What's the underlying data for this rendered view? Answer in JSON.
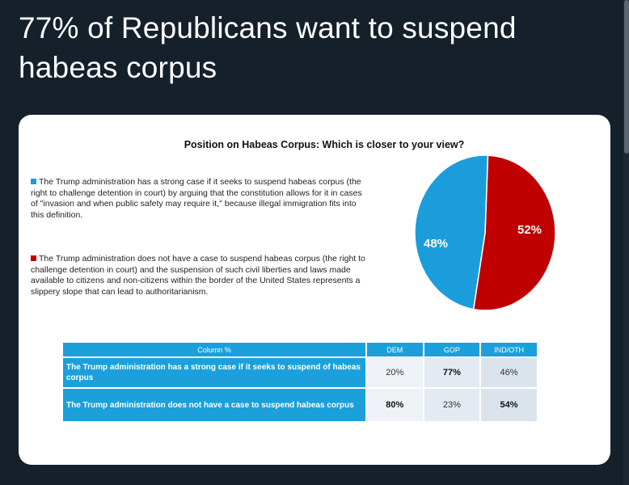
{
  "post": {
    "title": "77% of Republicans want to suspend habeas corpus"
  },
  "chart": {
    "title": "Position on Habeas Corpus: Which is closer to your view?",
    "option_a": "The Trump administration has a strong case if it seeks to suspend habeas corpus (the right to challenge detention in court) by arguing that the constitution allows for it in cases of \"invasion and when public safety may require it,\" because illegal immigration fits into this definition.",
    "option_b": "The Trump administration does not have a case to suspend habeas corpus (the right to challenge detention in court) and the suspension of such civil liberties and laws made available to citizens and non-citizens within the border of the United States represents a slippery slope that can lead to authoritarianism."
  },
  "colors": {
    "blue": "#1b9ddb",
    "red": "#c00000",
    "table_header": "#1ba0dc"
  },
  "chart_data": {
    "type": "pie",
    "slices": [
      {
        "label": "48%",
        "value": 48,
        "color": "#1b9ddb"
      },
      {
        "label": "52%",
        "value": 52,
        "color": "#c00000"
      }
    ]
  },
  "table": {
    "header": {
      "column": "Column %",
      "dem": "DEM",
      "gop": "GOP",
      "ind": "IND/OTH"
    },
    "rows": [
      {
        "label": "The Trump administration has a strong case if it seeks to suspend of habeas corpus",
        "dem": "20%",
        "gop": "77%",
        "ind": "46%"
      },
      {
        "label": "The Trump administration does not have a case to suspend habeas corpus",
        "dem": "80%",
        "gop": "23%",
        "ind": "54%"
      }
    ]
  }
}
